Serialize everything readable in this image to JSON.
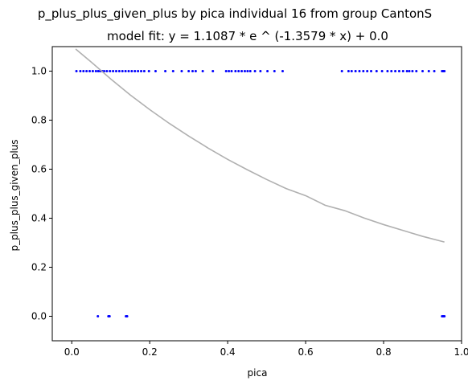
{
  "chart_data": {
    "type": "scatter",
    "title": "p_plus_plus_given_plus by pica individual 16 from group CantonS",
    "subtitle": "model fit: y = 1.1087 * e ^ (-1.3579 * x) + 0.0",
    "xlabel": "pica",
    "ylabel": "p_plus_plus_given_plus",
    "xlim": [
      -0.05,
      1.0
    ],
    "ylim": [
      -0.1,
      1.1
    ],
    "x_ticks": [
      0.0,
      0.2,
      0.4,
      0.6,
      0.8,
      1.0
    ],
    "x_tick_labels": [
      "0.0",
      "0.2",
      "0.4",
      "0.6",
      "0.8",
      "1.0"
    ],
    "y_ticks": [
      0.0,
      0.2,
      0.4,
      0.6,
      0.8,
      1.0
    ],
    "y_tick_labels": [
      "0.0",
      "0.2",
      "0.4",
      "0.6",
      "0.8",
      "1.0"
    ],
    "grid": false,
    "series": [
      {
        "kind": "scatter",
        "color": "#0000ff",
        "points": [
          [
            0.012,
            1.0
          ],
          [
            0.022,
            1.0
          ],
          [
            0.03,
            1.0
          ],
          [
            0.038,
            1.0
          ],
          [
            0.046,
            1.0
          ],
          [
            0.054,
            1.0
          ],
          [
            0.062,
            1.0
          ],
          [
            0.068,
            1.0
          ],
          [
            0.073,
            1.0
          ],
          [
            0.078,
            1.0
          ],
          [
            0.083,
            1.0
          ],
          [
            0.09,
            1.0
          ],
          [
            0.098,
            1.0
          ],
          [
            0.106,
            1.0
          ],
          [
            0.114,
            1.0
          ],
          [
            0.122,
            1.0
          ],
          [
            0.13,
            1.0
          ],
          [
            0.138,
            1.0
          ],
          [
            0.146,
            1.0
          ],
          [
            0.154,
            1.0
          ],
          [
            0.162,
            1.0
          ],
          [
            0.17,
            1.0
          ],
          [
            0.178,
            1.0
          ],
          [
            0.186,
            1.0
          ],
          [
            0.198,
            1.0
          ],
          [
            0.215,
            1.0
          ],
          [
            0.24,
            1.0
          ],
          [
            0.26,
            1.0
          ],
          [
            0.282,
            1.0
          ],
          [
            0.3,
            1.0
          ],
          [
            0.31,
            1.0
          ],
          [
            0.318,
            1.0
          ],
          [
            0.336,
            1.0
          ],
          [
            0.362,
            1.0
          ],
          [
            0.396,
            1.0
          ],
          [
            0.403,
            1.0
          ],
          [
            0.41,
            1.0
          ],
          [
            0.42,
            1.0
          ],
          [
            0.428,
            1.0
          ],
          [
            0.436,
            1.0
          ],
          [
            0.444,
            1.0
          ],
          [
            0.451,
            1.0
          ],
          [
            0.458,
            1.0
          ],
          [
            0.47,
            1.0
          ],
          [
            0.484,
            1.0
          ],
          [
            0.502,
            1.0
          ],
          [
            0.52,
            1.0
          ],
          [
            0.541,
            1.0
          ],
          [
            0.693,
            1.0
          ],
          [
            0.71,
            1.0
          ],
          [
            0.718,
            1.0
          ],
          [
            0.728,
            1.0
          ],
          [
            0.738,
            1.0
          ],
          [
            0.748,
            1.0
          ],
          [
            0.758,
            1.0
          ],
          [
            0.768,
            1.0
          ],
          [
            0.782,
            1.0
          ],
          [
            0.796,
            1.0
          ],
          [
            0.81,
            1.0
          ],
          [
            0.82,
            1.0
          ],
          [
            0.83,
            1.0
          ],
          [
            0.84,
            1.0
          ],
          [
            0.85,
            1.0
          ],
          [
            0.86,
            1.0
          ],
          [
            0.866,
            1.0
          ],
          [
            0.874,
            1.0
          ],
          [
            0.884,
            1.0
          ],
          [
            0.9,
            1.0
          ],
          [
            0.916,
            1.0
          ],
          [
            0.93,
            1.0
          ],
          [
            0.95,
            1.0
          ],
          [
            0.953,
            1.0
          ],
          [
            0.956,
            1.0
          ],
          [
            0.067,
            0.0
          ],
          [
            0.094,
            0.0
          ],
          [
            0.097,
            0.0
          ],
          [
            0.139,
            0.0
          ],
          [
            0.142,
            0.0
          ],
          [
            0.95,
            0.0
          ],
          [
            0.953,
            0.0
          ],
          [
            0.956,
            0.0
          ]
        ]
      },
      {
        "kind": "line",
        "color": "#b0b0b0",
        "x": [
          0.01,
          0.05,
          0.1,
          0.15,
          0.2,
          0.25,
          0.3,
          0.35,
          0.4,
          0.45,
          0.5,
          0.55,
          0.6,
          0.65,
          0.7,
          0.75,
          0.8,
          0.85,
          0.9,
          0.956
        ],
        "y": [
          1.09,
          1.037,
          0.968,
          0.903,
          0.843,
          0.787,
          0.735,
          0.686,
          0.64,
          0.598,
          0.558,
          0.521,
          0.492,
          0.453,
          0.431,
          0.401,
          0.374,
          0.35,
          0.326,
          0.303
        ]
      }
    ]
  }
}
